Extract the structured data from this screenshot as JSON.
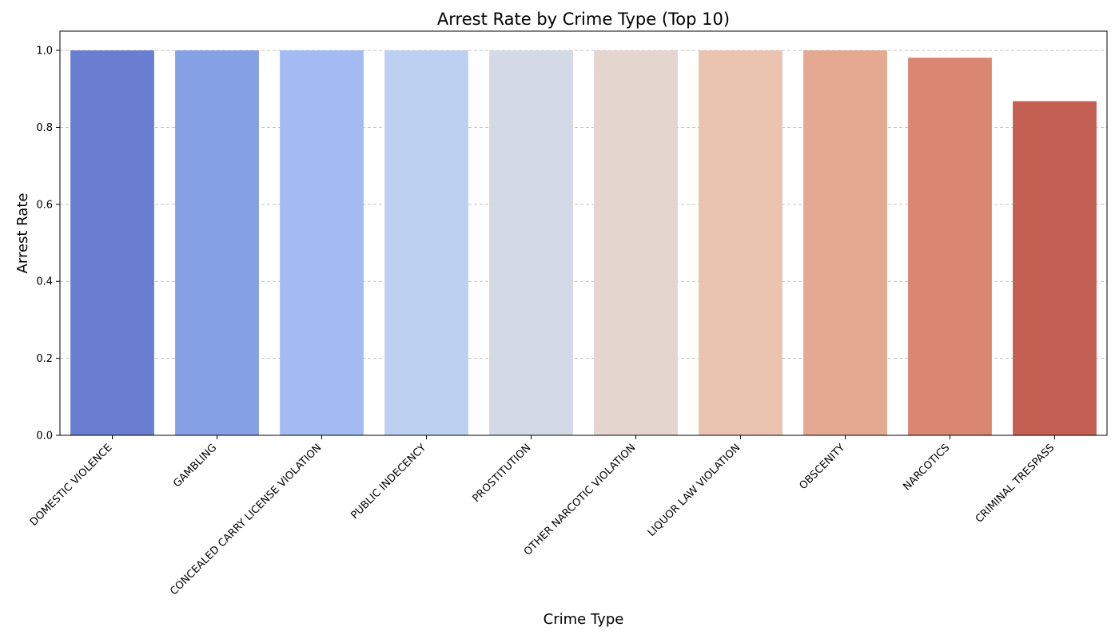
{
  "chart_data": {
    "type": "bar",
    "title": "Arrest Rate by Crime Type (Top 10)",
    "xlabel": "Crime Type",
    "ylabel": "Arrest Rate",
    "categories": [
      "DOMESTIC VIOLENCE",
      "GAMBLING",
      "CONCEALED CARRY LICENSE VIOLATION",
      "PUBLIC INDECENCY",
      "PROSTITUTION",
      "OTHER NARCOTIC VIOLATION",
      "LIQUOR LAW VIOLATION",
      "OBSCENITY",
      "NARCOTICS",
      "CRIMINAL TRESPASS"
    ],
    "values": [
      1.0,
      1.0,
      1.0,
      1.0,
      1.0,
      1.0,
      1.0,
      1.0,
      0.981,
      0.868
    ],
    "colors": [
      "#6a7ed1",
      "#86a0e6",
      "#a2bbf2",
      "#bdd0f1",
      "#d4dae5",
      "#e4d6cf",
      "#eac4b1",
      "#e5a890",
      "#d98772",
      "#c45f54"
    ],
    "ylim": [
      0,
      1.05
    ],
    "yticks": [
      "0.0",
      "0.2",
      "0.4",
      "0.6",
      "0.8",
      "1.0"
    ],
    "ytick_values": [
      0,
      0.2,
      0.4,
      0.6,
      0.8,
      1.0
    ],
    "grid": "y-dashed",
    "legend": "none"
  }
}
